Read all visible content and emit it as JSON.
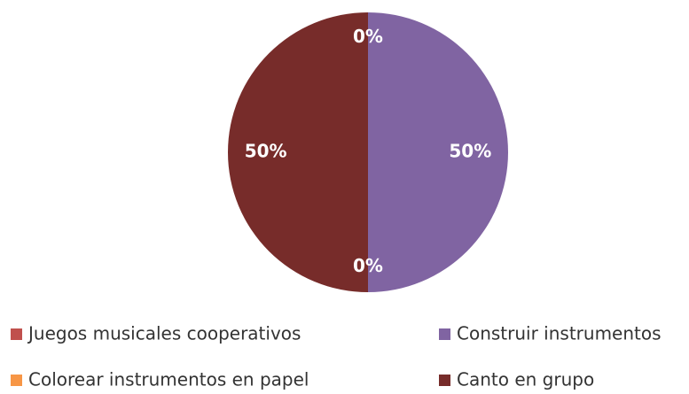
{
  "chart_data": {
    "type": "pie",
    "categories": [
      "Juegos musicales cooperativos",
      "Construir instrumentos",
      "Colorear instrumentos en papel",
      "Canto en grupo"
    ],
    "values": [
      0,
      50,
      0,
      50
    ],
    "value_labels": [
      "0%",
      "50%",
      "0%",
      "50%"
    ],
    "colors": [
      "#c0504d",
      "#8064a2",
      "#f79646",
      "#772c2a"
    ],
    "legend": "bottom"
  }
}
